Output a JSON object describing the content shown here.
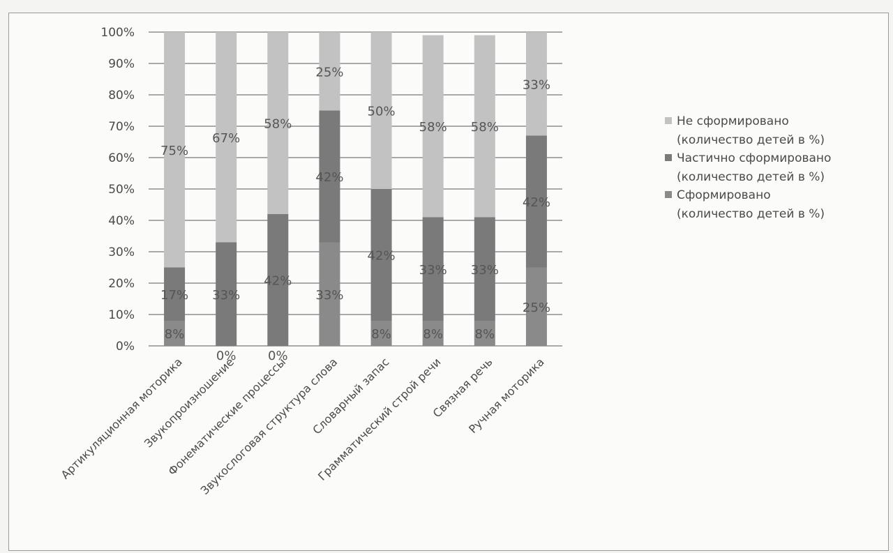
{
  "chart_data": {
    "type": "bar",
    "stacked": true,
    "percent_stacked": true,
    "categories": [
      "Артикуляционная моторика",
      "Звукопроизношение",
      "Фонематические процессы",
      "Звукослоговая структура слова",
      "Словарный запас",
      "Грамматический строй речи",
      "Связная речь",
      "Ручная моторика"
    ],
    "series": [
      {
        "name": "Сформировано",
        "name_unit": "(количество детей в %)",
        "color": "#8a8a8a",
        "values": [
          8,
          0,
          0,
          33,
          8,
          8,
          8,
          25
        ],
        "labels": [
          "8%",
          "0%",
          "0%",
          "33%",
          "8%",
          "8%",
          "8%",
          "25%"
        ]
      },
      {
        "name": "Частично сформировано",
        "name_unit": "(количество детей в %)",
        "color": "#7a7a7a",
        "values": [
          17,
          33,
          42,
          42,
          42,
          33,
          33,
          42
        ],
        "labels": [
          "17%",
          "33%",
          "42%",
          "42%",
          "42%",
          "33%",
          "33%",
          "42%"
        ]
      },
      {
        "name": "Не сформировано",
        "name_unit": "(количество детей в %)",
        "color": "#c2c2c2",
        "values": [
          75,
          67,
          58,
          25,
          50,
          58,
          58,
          33
        ],
        "labels": [
          "75%",
          "67%",
          "58%",
          "25%",
          "50%",
          "58%",
          "58%",
          "33%"
        ]
      }
    ],
    "y_ticks": [
      "0%",
      "10%",
      "20%",
      "30%",
      "40%",
      "50%",
      "60%",
      "70%",
      "80%",
      "90%",
      "100%"
    ],
    "ylim": [
      0,
      100
    ],
    "grid": true,
    "legend_position": "right",
    "title": "",
    "xlabel": "",
    "ylabel": ""
  }
}
